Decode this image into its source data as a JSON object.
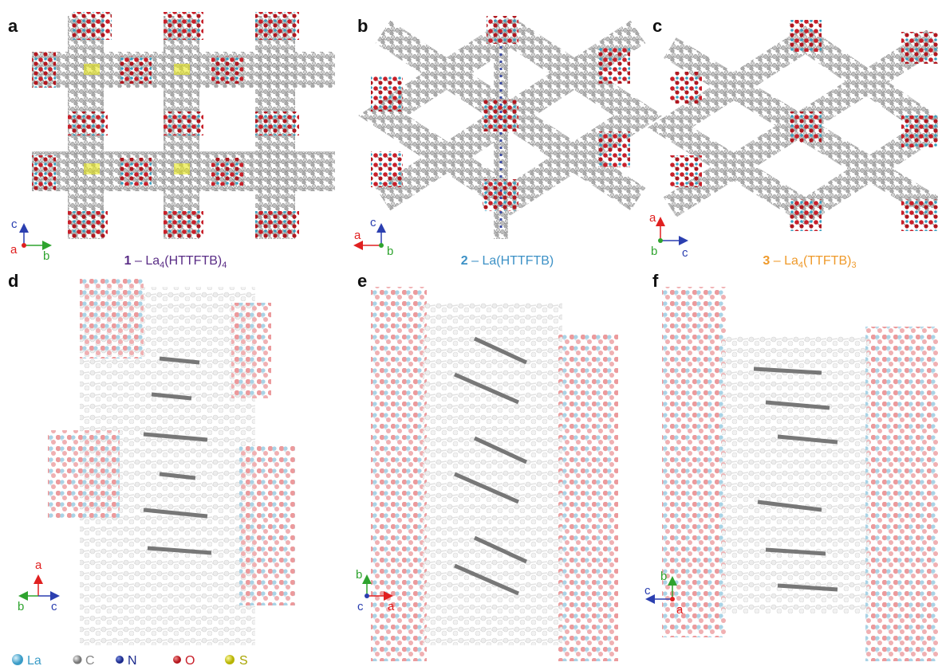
{
  "panels": [
    {
      "label": "a",
      "axes": [
        "c",
        "a",
        "b"
      ]
    },
    {
      "label": "b",
      "axes": [
        "c",
        "a",
        "b"
      ]
    },
    {
      "label": "c",
      "axes": [
        "a",
        "b",
        "c"
      ]
    },
    {
      "label": "d",
      "axes": [
        "a",
        "b",
        "c"
      ]
    },
    {
      "label": "e",
      "axes": [
        "b",
        "c",
        "a"
      ]
    },
    {
      "label": "f",
      "axes": [
        "b",
        "c",
        "a"
      ]
    }
  ],
  "captions": [
    [
      "1",
      " – La",
      "4",
      "(HTTFTB)",
      "4"
    ],
    [
      "2",
      " – La(HTTFTB)"
    ],
    [
      "3",
      " – La",
      "4",
      "(TTFTB)",
      "3"
    ]
  ],
  "legend": [
    "La",
    "C",
    "N",
    "O",
    "S"
  ]
}
